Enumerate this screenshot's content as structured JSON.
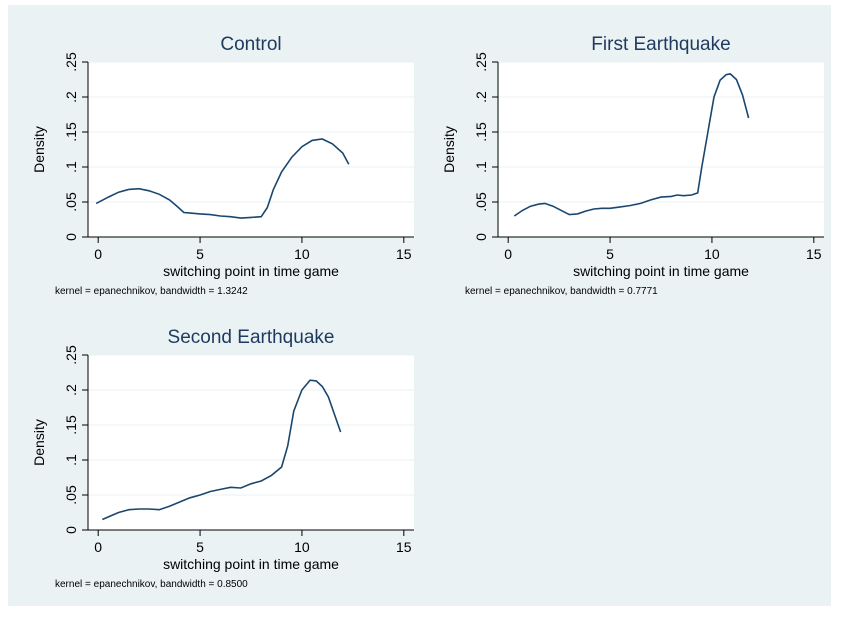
{
  "colors": {
    "figure_bg": "#eaf2f3",
    "plot_bg": "#ffffff",
    "line": "#1a476f",
    "title": "#1e3a5f"
  },
  "chart_data": [
    {
      "type": "line",
      "title": "Control",
      "xlabel": "switching point in time game",
      "ylabel": "Density",
      "note": "kernel = epanechnikov, bandwidth = 1.3242",
      "xlim": [
        -0.5,
        15.5
      ],
      "ylim": [
        0,
        0.25
      ],
      "xticks": [
        0,
        5,
        10,
        15
      ],
      "yticks": [
        0,
        0.05,
        0.1,
        0.15,
        0.2,
        0.25
      ],
      "xtick_labels": [
        "0",
        "5",
        "10",
        "15"
      ],
      "ytick_labels": [
        "0",
        ".05",
        ".1",
        ".15",
        ".2",
        ".25"
      ],
      "grid": true,
      "x": [
        -0.1,
        0.5,
        1.0,
        1.5,
        2.0,
        2.5,
        3.0,
        3.5,
        3.9,
        4.2,
        4.6,
        5.0,
        5.5,
        6.0,
        6.5,
        7.0,
        7.5,
        8.0,
        8.3,
        8.6,
        9.0,
        9.5,
        10.0,
        10.5,
        11.0,
        11.5,
        12.0,
        12.3
      ],
      "y": [
        0.048,
        0.057,
        0.064,
        0.068,
        0.069,
        0.066,
        0.061,
        0.053,
        0.043,
        0.035,
        0.034,
        0.033,
        0.032,
        0.03,
        0.029,
        0.027,
        0.028,
        0.029,
        0.042,
        0.068,
        0.093,
        0.114,
        0.129,
        0.138,
        0.14,
        0.133,
        0.12,
        0.104
      ]
    },
    {
      "type": "line",
      "title": "First Earthquake",
      "xlabel": "switching point in time game",
      "ylabel": "Density",
      "note": "kernel = epanechnikov, bandwidth = 0.7771",
      "xlim": [
        -0.5,
        15.5
      ],
      "ylim": [
        0,
        0.25
      ],
      "xticks": [
        0,
        5,
        10,
        15
      ],
      "yticks": [
        0,
        0.05,
        0.1,
        0.15,
        0.2,
        0.25
      ],
      "xtick_labels": [
        "0",
        "5",
        "10",
        "15"
      ],
      "ytick_labels": [
        "0",
        ".05",
        ".1",
        ".15",
        ".2",
        ".25"
      ],
      "grid": true,
      "x": [
        0.3,
        0.7,
        1.1,
        1.5,
        1.8,
        2.2,
        2.6,
        3.0,
        3.4,
        3.8,
        4.2,
        4.6,
        5.0,
        5.5,
        6.0,
        6.5,
        7.0,
        7.5,
        8.0,
        8.3,
        8.6,
        9.0,
        9.3,
        9.5,
        9.8,
        10.1,
        10.4,
        10.7,
        10.9,
        11.2,
        11.5,
        11.8
      ],
      "y": [
        0.03,
        0.038,
        0.044,
        0.047,
        0.048,
        0.044,
        0.038,
        0.032,
        0.033,
        0.037,
        0.04,
        0.041,
        0.041,
        0.043,
        0.045,
        0.048,
        0.053,
        0.057,
        0.058,
        0.06,
        0.059,
        0.06,
        0.063,
        0.1,
        0.15,
        0.2,
        0.224,
        0.232,
        0.233,
        0.225,
        0.203,
        0.17
      ]
    },
    {
      "type": "line",
      "title": "Second Earthquake",
      "xlabel": "switching point in time game",
      "ylabel": "Density",
      "note": "kernel = epanechnikov, bandwidth = 0.8500",
      "xlim": [
        -0.5,
        15.5
      ],
      "ylim": [
        0,
        0.25
      ],
      "xticks": [
        0,
        5,
        10,
        15
      ],
      "yticks": [
        0,
        0.05,
        0.1,
        0.15,
        0.2,
        0.25
      ],
      "xtick_labels": [
        "0",
        "5",
        "10",
        "15"
      ],
      "ytick_labels": [
        "0",
        ".05",
        ".1",
        ".15",
        ".2",
        ".25"
      ],
      "grid": true,
      "x": [
        0.2,
        0.6,
        1.0,
        1.5,
        2.0,
        2.5,
        3.0,
        3.5,
        4.0,
        4.5,
        5.0,
        5.5,
        6.0,
        6.5,
        7.0,
        7.5,
        8.0,
        8.5,
        9.0,
        9.3,
        9.6,
        10.0,
        10.4,
        10.7,
        11.0,
        11.3,
        11.6,
        11.9
      ],
      "y": [
        0.015,
        0.02,
        0.025,
        0.029,
        0.03,
        0.03,
        0.029,
        0.034,
        0.04,
        0.046,
        0.05,
        0.055,
        0.058,
        0.061,
        0.06,
        0.066,
        0.07,
        0.078,
        0.09,
        0.12,
        0.17,
        0.2,
        0.214,
        0.213,
        0.205,
        0.19,
        0.165,
        0.14
      ]
    }
  ]
}
